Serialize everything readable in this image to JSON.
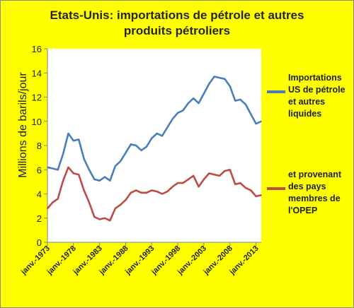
{
  "title": [
    "Etats-Unis: importations de pétrole et autres",
    "produits pétroliers"
  ],
  "chart_data": {
    "type": "line",
    "title": "Etats-Unis: importations de pétrole et autres produits pétroliers",
    "ylabel": "Millions de barils/jour",
    "ylim": [
      0,
      16
    ],
    "yticks": [
      "0",
      "2",
      "4",
      "6",
      "8",
      "10",
      "12",
      "14",
      "16"
    ],
    "xticks": [
      "janv.-1973",
      "janv.-1978",
      "janv.-1983",
      "janv.-1988",
      "janv.-1993",
      "janv.-1998",
      "janv.-2003",
      "janv.-2008",
      "janv.-2013"
    ],
    "x": [
      "1973",
      "1974",
      "1975",
      "1976",
      "1977",
      "1978",
      "1979",
      "1980",
      "1981",
      "1982",
      "1983",
      "1984",
      "1985",
      "1986",
      "1987",
      "1988",
      "1989",
      "1990",
      "1991",
      "1992",
      "1993",
      "1994",
      "1995",
      "1996",
      "1997",
      "1998",
      "1999",
      "2000",
      "2001",
      "2002",
      "2003",
      "2004",
      "2005",
      "2006",
      "2007",
      "2008",
      "2009",
      "2010",
      "2011",
      "2012",
      "2013",
      "2014"
    ],
    "series": [
      {
        "name": "Importations US de pétrole et autres liquides",
        "color": "#4a7ebb",
        "values": [
          6.2,
          6.1,
          6.0,
          7.3,
          9.0,
          8.4,
          8.5,
          6.9,
          6.0,
          5.2,
          5.1,
          5.4,
          5.1,
          6.3,
          6.7,
          7.4,
          8.1,
          8.0,
          7.6,
          7.9,
          8.6,
          9.0,
          8.8,
          9.5,
          10.2,
          10.7,
          10.9,
          11.5,
          11.9,
          11.5,
          12.3,
          13.1,
          13.7,
          13.6,
          13.5,
          12.9,
          11.7,
          11.8,
          11.4,
          10.6,
          9.8,
          10.0
        ]
      },
      {
        "name": "et provenant des pays membres de l'OPEP",
        "color": "#be4b48",
        "values": [
          2.8,
          3.3,
          3.6,
          5.1,
          6.2,
          5.7,
          5.6,
          4.3,
          3.3,
          2.1,
          1.9,
          2.0,
          1.8,
          2.8,
          3.1,
          3.5,
          4.1,
          4.3,
          4.1,
          4.1,
          4.3,
          4.2,
          4.0,
          4.2,
          4.6,
          4.9,
          4.9,
          5.2,
          5.5,
          4.6,
          5.2,
          5.7,
          5.6,
          5.5,
          5.9,
          6.0,
          4.8,
          4.9,
          4.5,
          4.3,
          3.8,
          3.9
        ]
      }
    ],
    "legend_position": "right",
    "grid": false
  },
  "legend": {
    "imports": [
      "Importations",
      "US de pétrole",
      "et autres",
      "liquides"
    ],
    "opec": [
      "et provenant",
      "des pays",
      "membres de",
      "l'OPEP"
    ]
  }
}
